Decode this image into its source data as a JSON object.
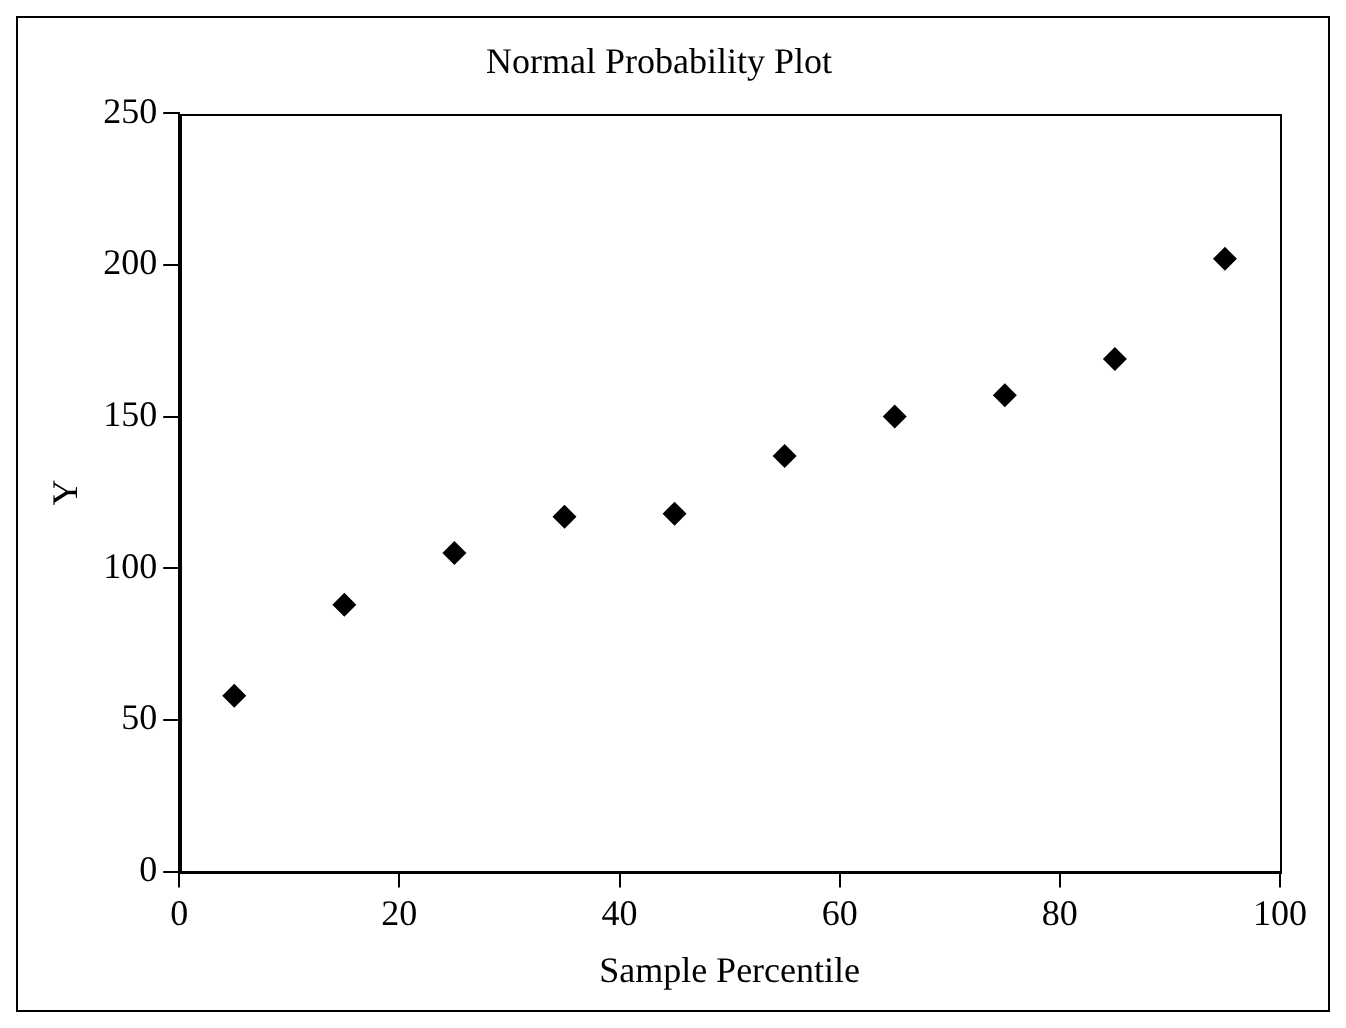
{
  "chart_data": {
    "type": "scatter",
    "title": "Normal Probability Plot",
    "xlabel": "Sample Percentile",
    "ylabel": "Y",
    "x": [
      5,
      15,
      25,
      35,
      45,
      55,
      65,
      75,
      85,
      95
    ],
    "series": [
      {
        "color": "#000000",
        "values": [
          58,
          88,
          105,
          117,
          118,
          137,
          150,
          157,
          169,
          202
        ]
      }
    ],
    "xlim": [
      0,
      100
    ],
    "xticks": [
      0,
      20,
      40,
      60,
      80,
      100
    ],
    "ylim": [
      0,
      250
    ],
    "yticks": [
      0,
      50,
      100,
      150,
      200,
      250
    ],
    "grid": false,
    "legend": false,
    "marker": "diamond"
  }
}
